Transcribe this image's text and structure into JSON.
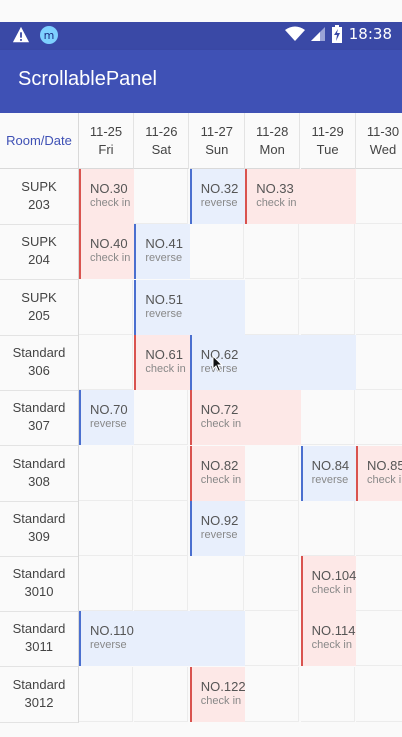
{
  "status_bar": {
    "time": "18:38",
    "icons": [
      "warning-icon",
      "notification-icon",
      "wifi-icon",
      "signal-icon",
      "battery-icon"
    ]
  },
  "app": {
    "title": "ScrollablePanel"
  },
  "panel": {
    "corner_label": "Room/Date",
    "dates": [
      {
        "date": "11-25",
        "day": "Fri"
      },
      {
        "date": "11-26",
        "day": "Sat"
      },
      {
        "date": "11-27",
        "day": "Sun"
      },
      {
        "date": "11-28",
        "day": "Mon"
      },
      {
        "date": "11-29",
        "day": "Tue"
      },
      {
        "date": "11-30",
        "day": "Wed"
      }
    ],
    "rooms": [
      {
        "type": "SUPK",
        "number": "203"
      },
      {
        "type": "SUPK",
        "number": "204"
      },
      {
        "type": "SUPK",
        "number": "205"
      },
      {
        "type": "Standard",
        "number": "306"
      },
      {
        "type": "Standard",
        "number": "307"
      },
      {
        "type": "Standard",
        "number": "308"
      },
      {
        "type": "Standard",
        "number": "309"
      },
      {
        "type": "Standard",
        "number": "3010"
      },
      {
        "type": "Standard",
        "number": "3011"
      },
      {
        "type": "Standard",
        "number": "3012"
      }
    ],
    "bookings": [
      {
        "no": "NO.30",
        "status": "check in",
        "room": 0,
        "start": 0,
        "span": 1,
        "kind": "checkin"
      },
      {
        "no": "NO.32",
        "status": "reverse",
        "room": 0,
        "start": 2,
        "span": 1,
        "kind": "reverse"
      },
      {
        "no": "NO.33",
        "status": "check in",
        "room": 0,
        "start": 3,
        "span": 2,
        "kind": "checkin"
      },
      {
        "no": "NO.40",
        "status": "check in",
        "room": 1,
        "start": 0,
        "span": 1,
        "kind": "checkin"
      },
      {
        "no": "NO.41",
        "status": "reverse",
        "room": 1,
        "start": 1,
        "span": 1,
        "kind": "reverse"
      },
      {
        "no": "NO.51",
        "status": "reverse",
        "room": 2,
        "start": 1,
        "span": 2,
        "kind": "reverse"
      },
      {
        "no": "NO.61",
        "status": "check in",
        "room": 3,
        "start": 1,
        "span": 1,
        "kind": "checkin"
      },
      {
        "no": "NO.62",
        "status": "reverse",
        "room": 3,
        "start": 2,
        "span": 3,
        "kind": "reverse"
      },
      {
        "no": "NO.70",
        "status": "reverse",
        "room": 4,
        "start": 0,
        "span": 1,
        "kind": "reverse"
      },
      {
        "no": "NO.72",
        "status": "check in",
        "room": 4,
        "start": 2,
        "span": 2,
        "kind": "checkin"
      },
      {
        "no": "NO.82",
        "status": "check in",
        "room": 5,
        "start": 2,
        "span": 1,
        "kind": "checkin"
      },
      {
        "no": "NO.84",
        "status": "reverse",
        "room": 5,
        "start": 4,
        "span": 1,
        "kind": "reverse"
      },
      {
        "no": "NO.85",
        "status": "check in",
        "room": 5,
        "start": 5,
        "span": 1,
        "kind": "checkin"
      },
      {
        "no": "NO.92",
        "status": "reverse",
        "room": 6,
        "start": 2,
        "span": 1,
        "kind": "reverse"
      },
      {
        "no": "NO.104",
        "status": "check in",
        "room": 7,
        "start": 4,
        "span": 1,
        "kind": "checkin"
      },
      {
        "no": "NO.110",
        "status": "reverse",
        "room": 8,
        "start": 0,
        "span": 3,
        "kind": "reverse"
      },
      {
        "no": "NO.114",
        "status": "check in",
        "room": 8,
        "start": 4,
        "span": 1,
        "kind": "checkin"
      },
      {
        "no": "NO.122",
        "status": "check in",
        "room": 9,
        "start": 2,
        "span": 1,
        "kind": "checkin"
      }
    ]
  }
}
